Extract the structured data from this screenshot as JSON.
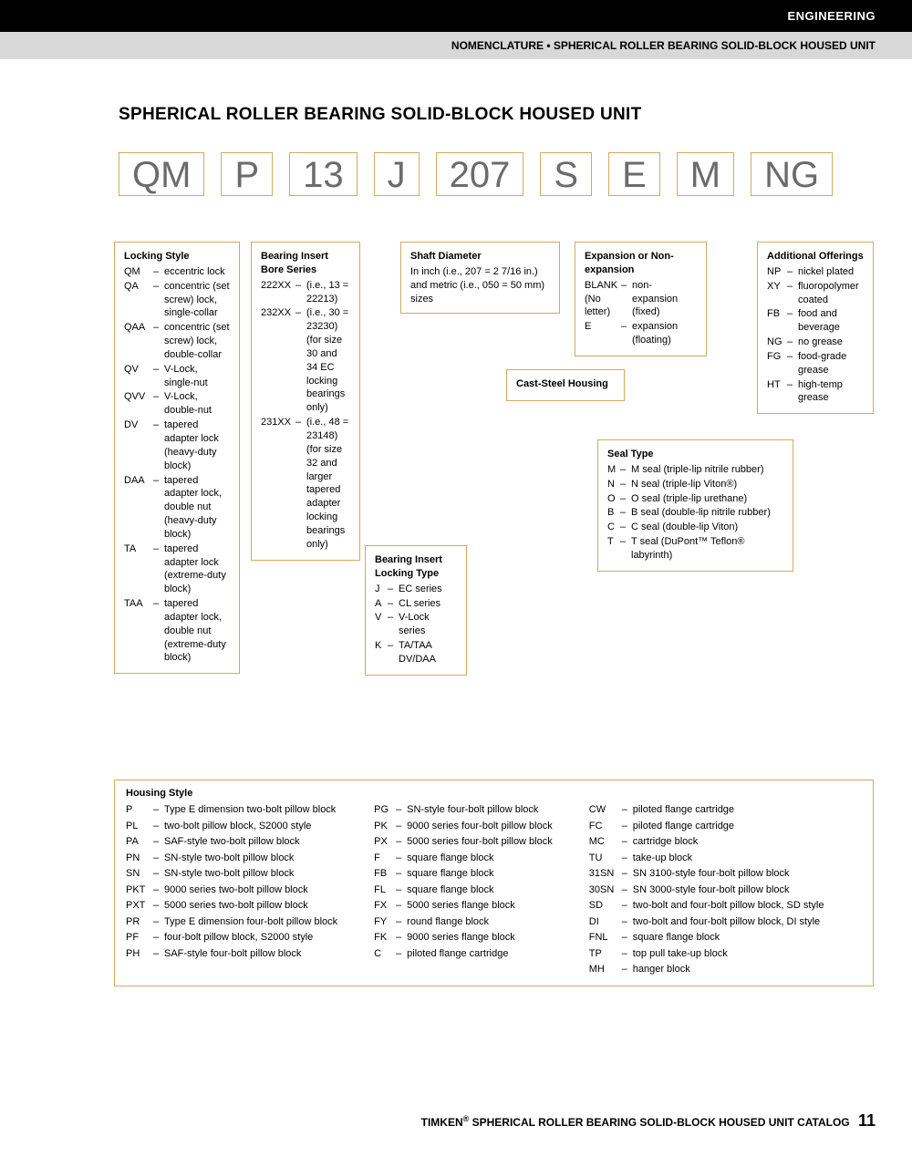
{
  "header": {
    "category": "ENGINEERING",
    "subtitle": "NOMENCLATURE • SPHERICAL ROLLER BEARING SOLID-BLOCK HOUSED UNIT"
  },
  "title": "SPHERICAL ROLLER BEARING SOLID-BLOCK HOUSED UNIT",
  "codes": [
    "QM",
    "P",
    "13",
    "J",
    "207",
    "S",
    "E",
    "M",
    "NG"
  ],
  "locking_style": {
    "title": "Locking Style",
    "items": [
      {
        "c": "QM",
        "t": "eccentric lock"
      },
      {
        "c": "QA",
        "t": "concentric (set screw) lock, single-collar"
      },
      {
        "c": "QAA",
        "t": "concentric (set screw) lock, double-collar"
      },
      {
        "c": "QV",
        "t": "V-Lock, single-nut"
      },
      {
        "c": "QVV",
        "t": "V-Lock, double-nut"
      },
      {
        "c": "DV",
        "t": "tapered adapter lock (heavy-duty block)"
      },
      {
        "c": "DAA",
        "t": "tapered adapter lock, double nut (heavy-duty block)"
      },
      {
        "c": "TA",
        "t": "tapered adapter lock (extreme-duty block)"
      },
      {
        "c": "TAA",
        "t": "tapered adapter lock, double nut (extreme-duty block)"
      }
    ]
  },
  "bore_series": {
    "title": "Bearing Insert Bore Series",
    "items": [
      {
        "c": "222XX",
        "t": "(i.e., 13 = 22213)"
      },
      {
        "c": "232XX",
        "t": "(i.e., 30 = 23230) (for size 30 and 34 EC locking bearings only)"
      },
      {
        "c": "231XX",
        "t": "(i.e., 48 = 23148) (for size 32 and larger tapered adapter locking bearings only)"
      }
    ]
  },
  "locking_type": {
    "title": "Bearing Insert Locking Type",
    "items": [
      {
        "c": "J",
        "t": "EC series"
      },
      {
        "c": "A",
        "t": "CL series"
      },
      {
        "c": "V",
        "t": "V-Lock series"
      },
      {
        "c": "K",
        "t": "TA/TAA DV/DAA"
      }
    ]
  },
  "shaft": {
    "title": "Shaft Diameter",
    "text": "In inch (i.e., 207 = 2 7/16 in.) and metric (i.e., 050 = 50 mm) sizes"
  },
  "cast_steel": "Cast-Steel Housing",
  "expansion": {
    "title": "Expansion or Non-expansion",
    "items": [
      {
        "c": "BLANK (No letter)",
        "t": "non-expansion (fixed)"
      },
      {
        "c": "E",
        "t": "expansion (floating)"
      }
    ]
  },
  "seal": {
    "title": "Seal Type",
    "items": [
      {
        "c": "M",
        "t": "M seal (triple-lip nitrile rubber)"
      },
      {
        "c": "N",
        "t": "N seal (triple-lip Viton®)"
      },
      {
        "c": "O",
        "t": "O seal (triple-lip urethane)"
      },
      {
        "c": "B",
        "t": "B seal (double-lip nitrile rubber)"
      },
      {
        "c": "C",
        "t": "C seal (double-lip Viton)"
      },
      {
        "c": "T",
        "t": "T seal (DuPont™ Teflon® labyrinth)"
      }
    ]
  },
  "additional": {
    "title": "Additional Offerings",
    "items": [
      {
        "c": "NP",
        "t": "nickel plated"
      },
      {
        "c": "XY",
        "t": "fluoropolymer coated"
      },
      {
        "c": "FB",
        "t": "food and beverage"
      },
      {
        "c": "NG",
        "t": "no grease"
      },
      {
        "c": "FG",
        "t": "food-grade grease"
      },
      {
        "c": "HT",
        "t": "high-temp grease"
      }
    ]
  },
  "housing": {
    "title": "Housing Style",
    "col1": [
      {
        "c": "P",
        "t": "Type E dimension two-bolt pillow block"
      },
      {
        "c": "PL",
        "t": "two-bolt pillow block, S2000 style"
      },
      {
        "c": "PA",
        "t": "SAF-style two-bolt pillow block"
      },
      {
        "c": "PN",
        "t": "SN-style two-bolt pillow block"
      },
      {
        "c": "SN",
        "t": "SN-style two-bolt pillow block"
      },
      {
        "c": "PKT",
        "t": "9000 series two-bolt pillow block"
      },
      {
        "c": "PXT",
        "t": "5000 series two-bolt pillow block"
      },
      {
        "c": "PR",
        "t": "Type E dimension four-bolt pillow block"
      },
      {
        "c": "PF",
        "t": "four-bolt pillow block, S2000 style"
      },
      {
        "c": "PH",
        "t": "SAF-style four-bolt pillow block"
      }
    ],
    "col2": [
      {
        "c": "PG",
        "t": "SN-style four-bolt pillow block"
      },
      {
        "c": "PK",
        "t": "9000 series four-bolt pillow block"
      },
      {
        "c": "PX",
        "t": "5000 series four-bolt pillow block"
      },
      {
        "c": "F",
        "t": "square flange block"
      },
      {
        "c": "FB",
        "t": "square flange block"
      },
      {
        "c": "FL",
        "t": "square flange block"
      },
      {
        "c": "FX",
        "t": "5000 series flange block"
      },
      {
        "c": "FY",
        "t": "round flange block"
      },
      {
        "c": "FK",
        "t": "9000 series flange block"
      },
      {
        "c": "C",
        "t": "piloted flange cartridge"
      }
    ],
    "col3": [
      {
        "c": "CW",
        "t": "piloted flange cartridge"
      },
      {
        "c": "FC",
        "t": "piloted flange cartridge"
      },
      {
        "c": "MC",
        "t": "cartridge block"
      },
      {
        "c": "TU",
        "t": "take-up block"
      },
      {
        "c": "31SN",
        "t": "SN 3100-style four-bolt pillow block"
      },
      {
        "c": "30SN",
        "t": "SN 3000-style four-bolt pillow block"
      },
      {
        "c": "SD",
        "t": "two-bolt and four-bolt pillow block, SD style"
      },
      {
        "c": "DI",
        "t": "two-bolt and four-bolt pillow block, DI style"
      },
      {
        "c": "FNL",
        "t": "square flange block"
      },
      {
        "c": "TP",
        "t": "top pull take-up block"
      },
      {
        "c": "MH",
        "t": "hanger block"
      }
    ]
  },
  "footer": {
    "brand": "TIMKEN",
    "text": "SPHERICAL ROLLER BEARING SOLID-BLOCK HOUSED UNIT CATALOG",
    "page": "11"
  }
}
